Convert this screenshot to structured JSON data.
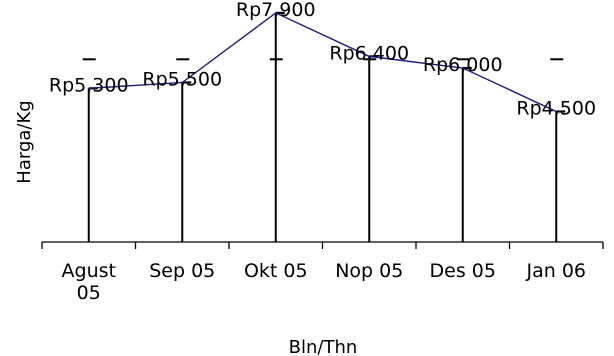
{
  "chart_data": {
    "type": "line",
    "categories": [
      [
        "Agust",
        "05"
      ],
      [
        "Sep 05"
      ],
      [
        "Okt 05"
      ],
      [
        "Nop 05"
      ],
      [
        "Des 05"
      ],
      [
        "Jan 06"
      ]
    ],
    "values": [
      5300,
      5500,
      7900,
      6400,
      6000,
      4500
    ],
    "data_labels": [
      "Rp5.300",
      "Rp5.500",
      "Rp7.900",
      "Rp6.400",
      "Rp6.000",
      "Rp4.500"
    ],
    "xlabel": "Bln/Thn",
    "ylabel": "Harga/Kg",
    "ylim": [
      0,
      8000
    ],
    "grid": false,
    "legend": "none",
    "line_color": "#1a1a80",
    "drop_line_color": "#000000"
  }
}
